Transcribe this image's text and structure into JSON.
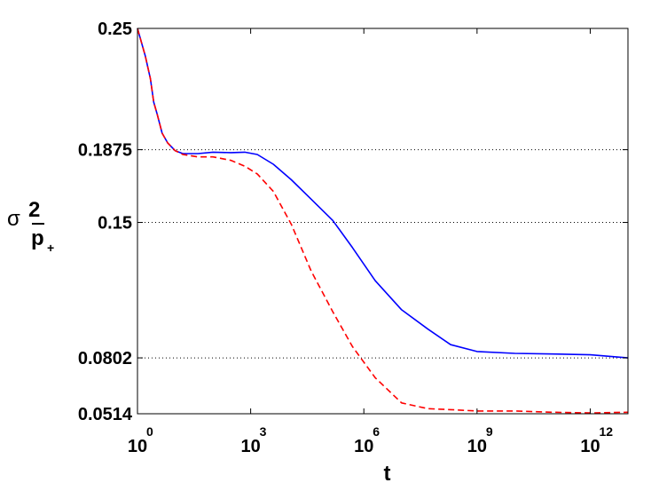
{
  "chart_data": {
    "type": "line",
    "xlabel": "t",
    "ylabel": {
      "symbol": "σ",
      "superscript": "2",
      "subscript": "p",
      "subscript_mark": "+"
    },
    "xscale": "log",
    "xlim": [
      1,
      10000000000000
    ],
    "ylim": [
      0.0514,
      0.25
    ],
    "x_ticks": [
      {
        "base": "10",
        "exp": "0",
        "value": 1
      },
      {
        "base": "10",
        "exp": "3",
        "value": 1000
      },
      {
        "base": "10",
        "exp": "6",
        "value": 1000000
      },
      {
        "base": "10",
        "exp": "9",
        "value": 1000000000
      },
      {
        "base": "10",
        "exp": "12",
        "value": 1000000000000
      }
    ],
    "y_ticks": [
      "0.0514",
      "0.0802",
      "0.15",
      "0.1875",
      "0.25"
    ],
    "y_tick_values": [
      0.0514,
      0.0802,
      0.15,
      0.1875,
      0.25
    ],
    "grid": "horizontal dotted at y ticks",
    "series": [
      {
        "color": "#0000ff",
        "style": "solid",
        "points": [
          [
            1,
            0.25
          ],
          [
            1.6,
            0.236
          ],
          [
            2.2,
            0.224
          ],
          [
            2.7,
            0.212
          ],
          [
            3.3,
            0.206
          ],
          [
            4.5,
            0.196
          ],
          [
            6.3,
            0.191
          ],
          [
            10,
            0.187
          ],
          [
            16,
            0.1855
          ],
          [
            40,
            0.1855
          ],
          [
            100,
            0.1862
          ],
          [
            300,
            0.186
          ],
          [
            700,
            0.1862
          ],
          [
            1500,
            0.185
          ],
          [
            4000,
            0.18
          ],
          [
            12000,
            0.172
          ],
          [
            40000,
            0.162
          ],
          [
            150000,
            0.151
          ],
          [
            500000,
            0.137
          ],
          [
            2000000,
            0.12
          ],
          [
            10000000,
            0.105
          ],
          [
            50000000,
            0.095
          ],
          [
            200000000,
            0.087
          ],
          [
            1000000000,
            0.0835
          ],
          [
            10000000000,
            0.0825
          ],
          [
            100000000000,
            0.0822
          ],
          [
            1000000000000,
            0.0818
          ],
          [
            10000000000000,
            0.0802
          ]
        ]
      },
      {
        "color": "#ff0000",
        "style": "dashed",
        "points": [
          [
            1,
            0.25
          ],
          [
            1.6,
            0.236
          ],
          [
            2.2,
            0.224
          ],
          [
            2.7,
            0.212
          ],
          [
            3.3,
            0.206
          ],
          [
            4.5,
            0.196
          ],
          [
            6.3,
            0.191
          ],
          [
            10,
            0.187
          ],
          [
            16,
            0.185
          ],
          [
            40,
            0.1838
          ],
          [
            100,
            0.1838
          ],
          [
            300,
            0.182
          ],
          [
            700,
            0.179
          ],
          [
            1500,
            0.175
          ],
          [
            4000,
            0.166
          ],
          [
            12000,
            0.149
          ],
          [
            40000,
            0.125
          ],
          [
            150000,
            0.104
          ],
          [
            500000,
            0.086
          ],
          [
            2000000,
            0.07
          ],
          [
            10000000,
            0.057
          ],
          [
            50000000,
            0.054
          ],
          [
            200000000,
            0.0535
          ],
          [
            1000000000,
            0.0528
          ],
          [
            10000000000,
            0.0528
          ],
          [
            100000000000,
            0.0522
          ],
          [
            1000000000000,
            0.0518
          ],
          [
            10000000000000,
            0.0522
          ]
        ]
      }
    ]
  }
}
